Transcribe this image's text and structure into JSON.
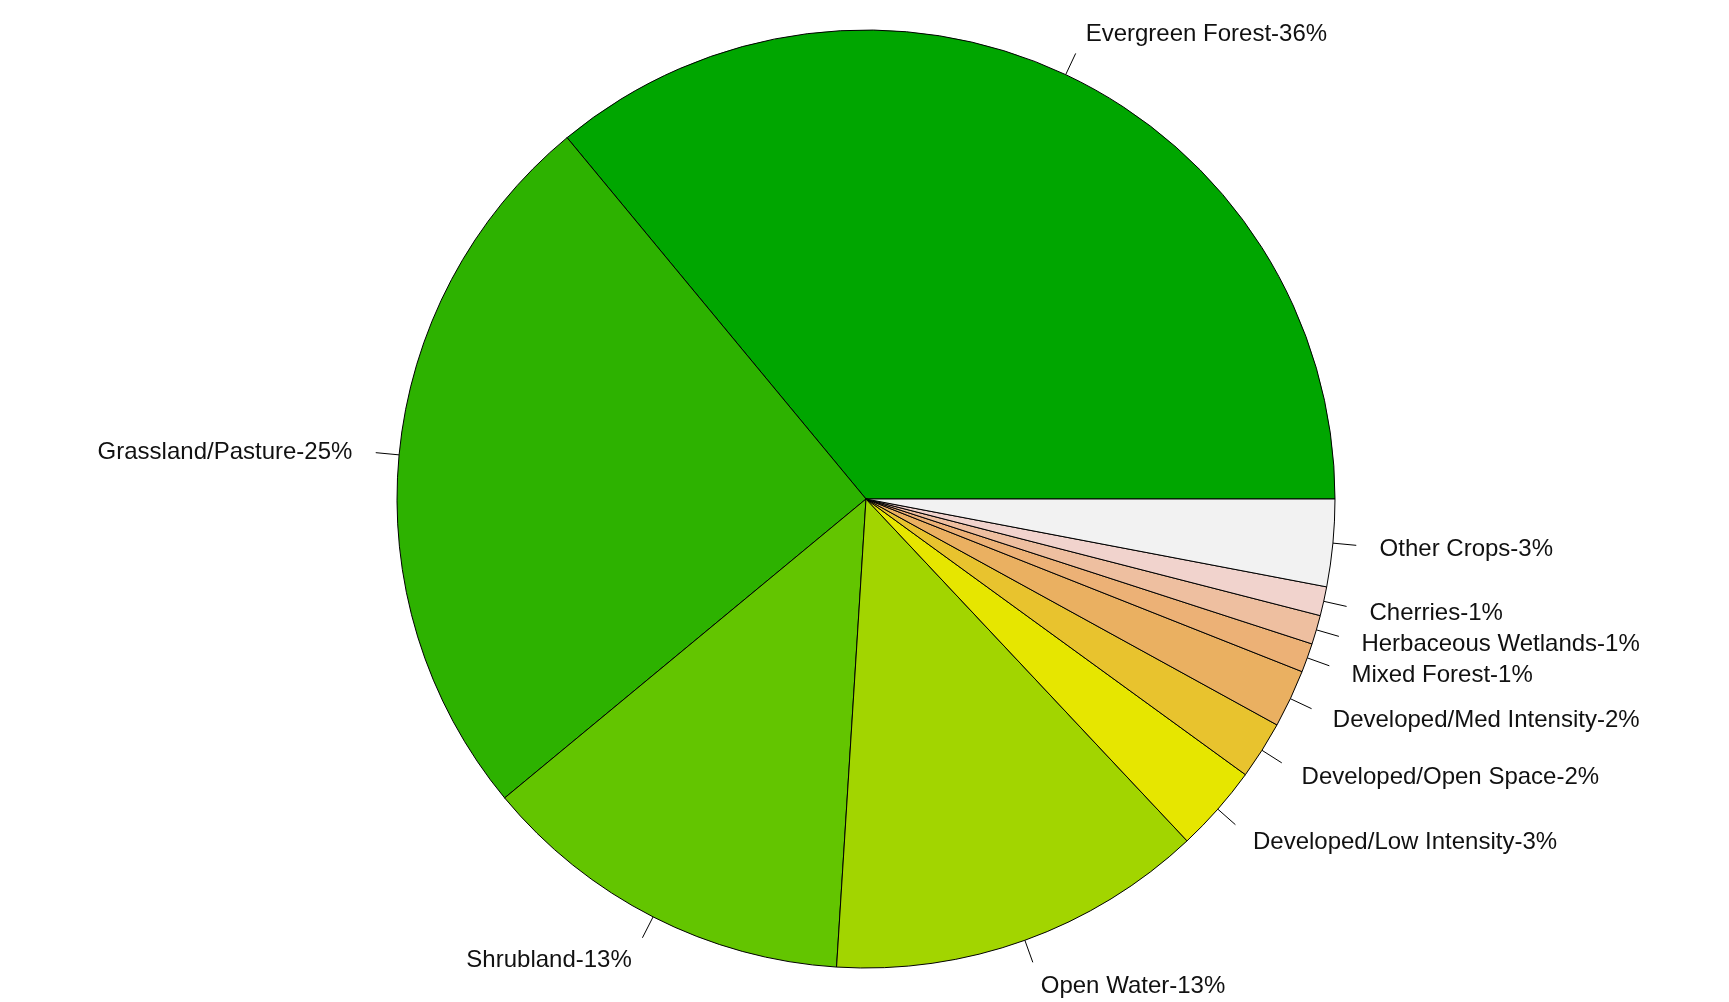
{
  "chart_data": {
    "type": "pie",
    "categories": [
      "Evergreen Forest-36%",
      "Grassland/Pasture-25%",
      "Shrubland-13%",
      "Open Water-13%",
      "Developed/Low Intensity-3%",
      "Developed/Open Space-2%",
      "Developed/Med Intensity-2%",
      "Mixed Forest-1%",
      "Herbaceous Wetlands-1%",
      "Cherries-1%",
      "Other Crops-3%"
    ],
    "values": [
      36,
      25,
      13,
      13,
      3,
      2,
      2,
      1,
      1,
      1,
      3
    ],
    "colors": [
      "#00a600",
      "#2db200",
      "#63c500",
      "#a2d500",
      "#e6e600",
      "#e8c32e",
      "#eab061",
      "#ecb176",
      "#eebfa0",
      "#f1d3cd",
      "#f2f2f2"
    ]
  }
}
